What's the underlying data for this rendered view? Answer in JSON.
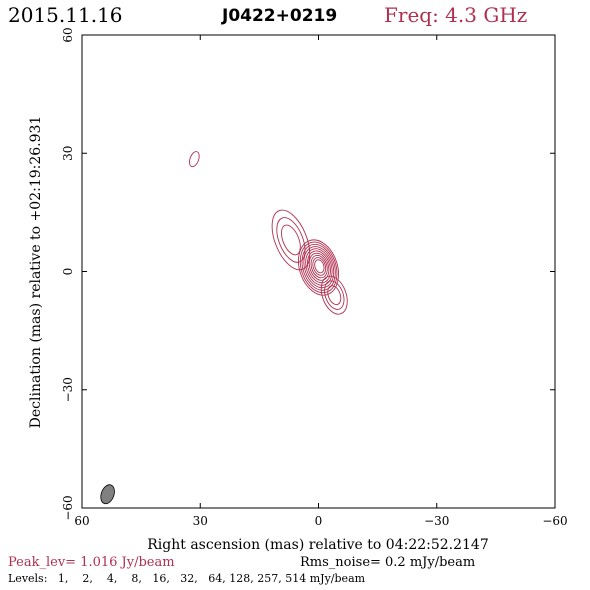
{
  "header": {
    "date": "2015.11.16",
    "source": "J0422+0219",
    "freq": "Freq: 4.3 GHz"
  },
  "chart_data": {
    "type": "contour",
    "xlabel": "Right ascension (mas) relative to 04:22:52.2147",
    "ylabel": "Declination (mas) relative to +02:19:26.931",
    "xlim": [
      60,
      -60
    ],
    "ylim": [
      -60,
      60
    ],
    "x_ticks": [
      60,
      30,
      0,
      -30,
      -60
    ],
    "y_ticks": [
      -60,
      -30,
      0,
      30,
      60
    ],
    "x_tick_labels": [
      "60",
      "30",
      "0",
      "−30",
      "−60"
    ],
    "y_tick_labels": [
      "−60",
      "−30",
      "0",
      "30",
      "60"
    ],
    "contour_levels_mjy": [
      1,
      2,
      4,
      8,
      16,
      32,
      64,
      128,
      257,
      514
    ],
    "core": {
      "ra": 0,
      "dec": 1,
      "a": 4.8,
      "b": 7.2,
      "pa_deg": -18
    },
    "knot_ne": {
      "ra": 7,
      "dec": 8,
      "a": 4,
      "b": 8,
      "pa_deg": -22
    },
    "jet_sw": {
      "ra": -4,
      "dec": -6,
      "a": 3,
      "b": 5,
      "pa_deg": -20
    },
    "isolated_contour": {
      "ra": 31.5,
      "dec": 28.5,
      "a": 1.1,
      "b": 2,
      "pa_deg": 20
    },
    "beam": {
      "ra": 53.5,
      "dec": -56.5,
      "a": 1.6,
      "b": 2.5,
      "pa_deg": 20
    },
    "colors": {
      "contour": "#b03050",
      "beam_fill": "#808080",
      "axis": "#000000"
    }
  },
  "footer": {
    "peak_lev": "Peak_lev=  1.016 Jy/beam",
    "rms_noise": "Rms_noise=  0.2 mJy/beam",
    "levels": "Levels:   1,    2,    4,    8,   16,   32,   64, 128, 257, 514 mJy/beam"
  }
}
